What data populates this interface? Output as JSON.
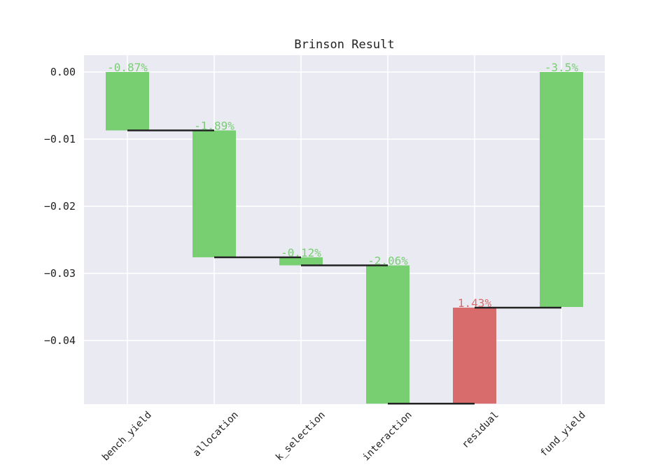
{
  "chart_data": {
    "type": "bar",
    "subtype": "waterfall",
    "title": "Brinson Result",
    "xlabel": "",
    "ylabel": "",
    "categories": [
      "bench_yield",
      "allocation",
      "stock_selection",
      "interaction",
      "residual",
      "fund_yield"
    ],
    "x_tick_labels": [
      "bench_yield",
      "allocation",
      "k_selection",
      "interaction",
      "residual",
      "fund_yield"
    ],
    "values": [
      -0.0087,
      -0.0189,
      -0.0012,
      -0.0206,
      0.0143,
      -0.035
    ],
    "data_labels": [
      "-0.87%",
      "-1.89%",
      "-0.12%",
      "-2.06%",
      "1.43%",
      "-3.5%"
    ],
    "ylim": [
      -0.0495,
      0.0025
    ],
    "yticks": [
      0.0,
      -0.01,
      -0.02,
      -0.03,
      -0.04
    ],
    "ytick_labels": [
      "0.00",
      "−0.01",
      "−0.02",
      "−0.03",
      "−0.04"
    ],
    "grid": true,
    "colors": {
      "negative": "#77cf72",
      "positive": "#d86c6c",
      "connector": "#222222",
      "background": "#eaeaf2",
      "grid": "#ffffff"
    }
  }
}
